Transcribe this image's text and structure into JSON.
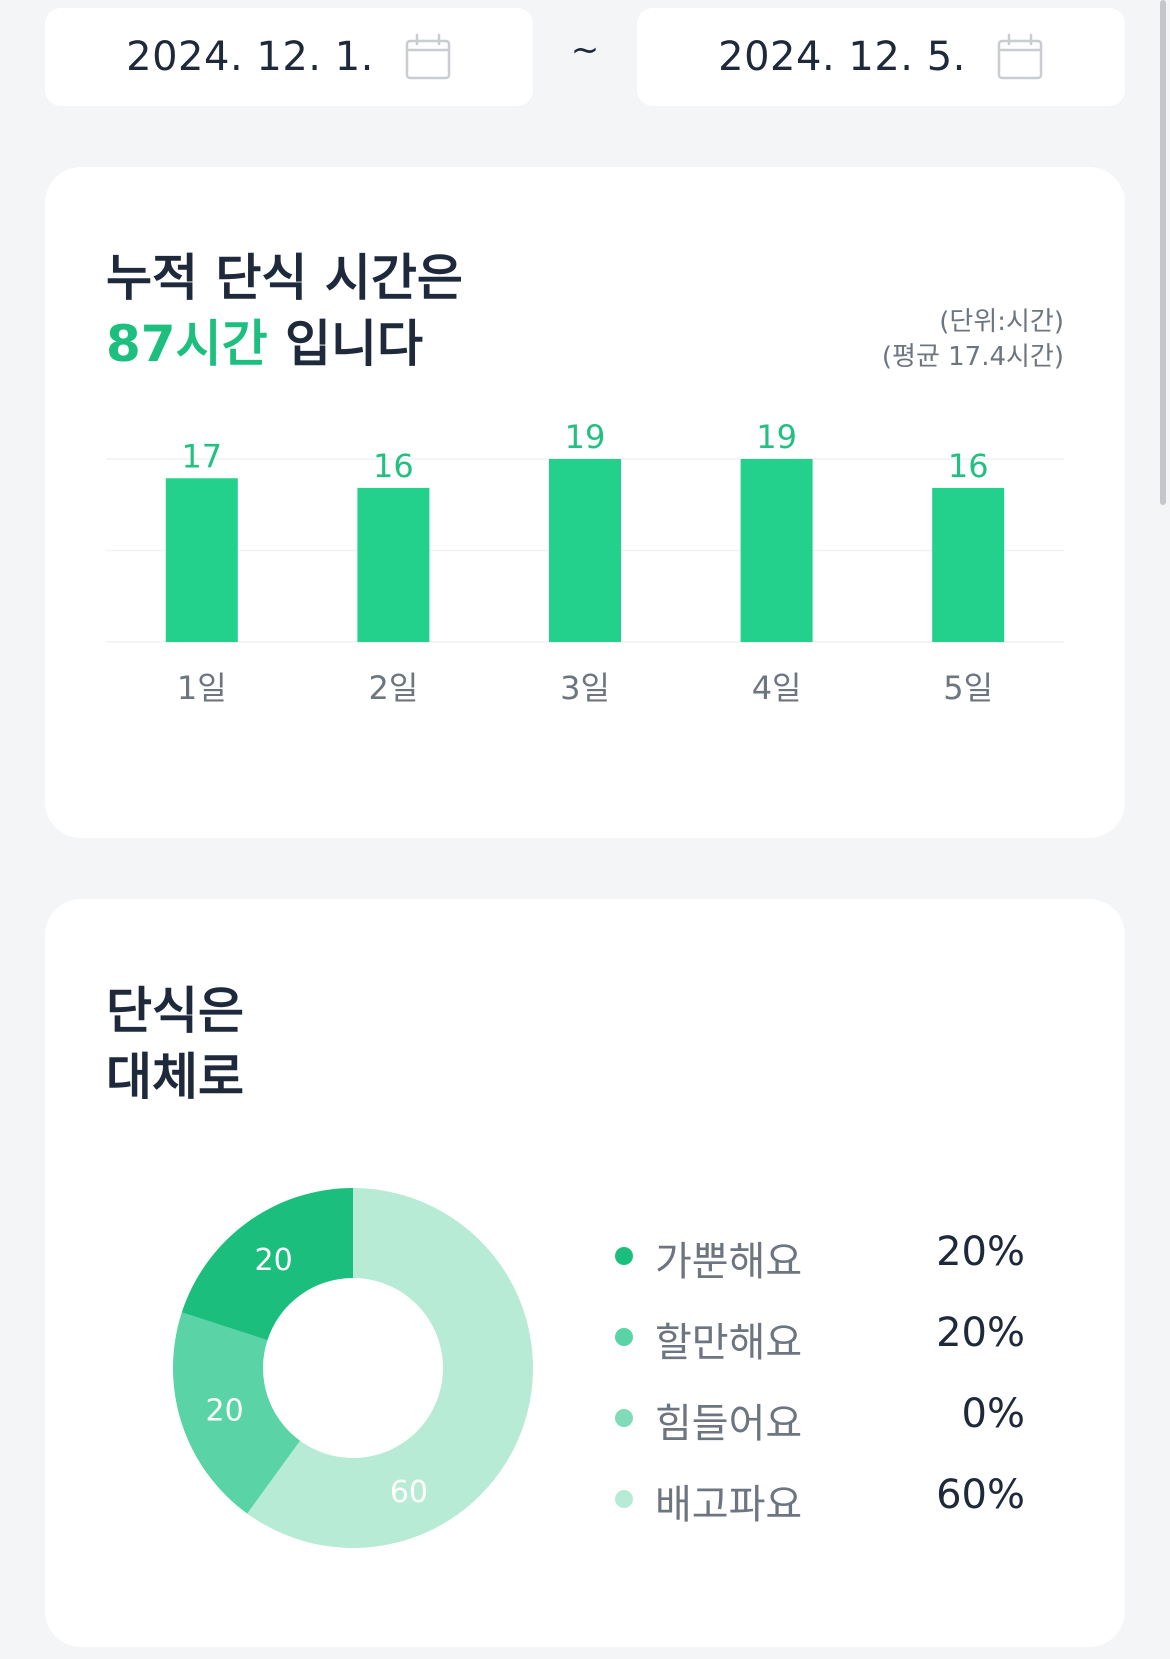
{
  "date_range": {
    "start": "2024. 12. 1.",
    "separator": "~",
    "end": "2024. 12. 5."
  },
  "summary_card": {
    "title_line1": "누적 단식 시간은",
    "title_highlight": "87시간",
    "title_suffix": " 입니다",
    "unit_note": "(단위:시간)",
    "average_note": "(평균 17.4시간)"
  },
  "feeling_card": {
    "title_line1": "단식은",
    "title_line2": "대체로"
  },
  "colors": {
    "bar": "#23d08c",
    "accent_text": "#1dbf7f",
    "value_label": "#23c083",
    "slice_light": "#1bbe7d",
    "slice_ok": "#5ad3a6",
    "slice_hard": "#7fdcb8",
    "slice_hungry": "#b8ebd6"
  },
  "chart_data": [
    {
      "type": "bar",
      "title": "",
      "categories": [
        "1일",
        "2일",
        "3일",
        "4일",
        "5일"
      ],
      "values": [
        17,
        16,
        19,
        19,
        16
      ],
      "ylim": [
        0,
        19
      ],
      "grid": true,
      "xlabel": "",
      "ylabel": ""
    },
    {
      "type": "pie",
      "title": "",
      "legend_position": "right",
      "slices": [
        {
          "label": "가뿐해요",
          "value": 20,
          "percent_label": "20%",
          "color": "#1bbe7d"
        },
        {
          "label": "할만해요",
          "value": 20,
          "percent_label": "20%",
          "color": "#5ad3a6"
        },
        {
          "label": "힘들어요",
          "value": 0,
          "percent_label": "0%",
          "color": "#7fdcb8"
        },
        {
          "label": "배고파요",
          "value": 60,
          "percent_label": "60%",
          "color": "#b8ebd6"
        }
      ]
    }
  ]
}
